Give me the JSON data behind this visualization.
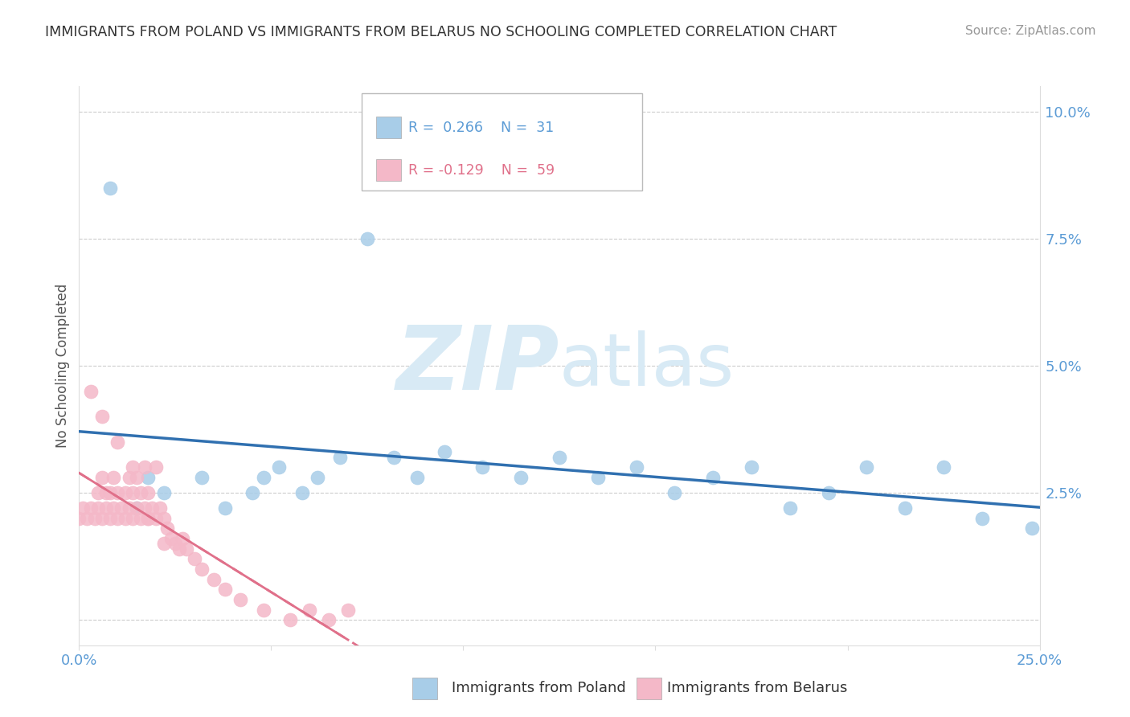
{
  "title": "IMMIGRANTS FROM POLAND VS IMMIGRANTS FROM BELARUS NO SCHOOLING COMPLETED CORRELATION CHART",
  "source": "Source: ZipAtlas.com",
  "ylabel": "No Schooling Completed",
  "ylabel_right_ticks": [
    "",
    "2.5%",
    "5.0%",
    "7.5%",
    "10.0%"
  ],
  "ylabel_right_vals": [
    0.0,
    0.025,
    0.05,
    0.075,
    0.1
  ],
  "xlim": [
    0.0,
    0.25
  ],
  "ylim": [
    -0.005,
    0.105
  ],
  "legend_poland": "Immigrants from Poland",
  "legend_belarus": "Immigrants from Belarus",
  "poland_color": "#a8cde8",
  "belarus_color": "#f4b8c8",
  "poland_line_color": "#3070b0",
  "belarus_line_color": "#e0708a",
  "background_color": "#ffffff",
  "poland_x": [
    0.022,
    0.032,
    0.038,
    0.045,
    0.048,
    0.052,
    0.058,
    0.062,
    0.068,
    0.075,
    0.082,
    0.088,
    0.095,
    0.105,
    0.115,
    0.125,
    0.135,
    0.145,
    0.155,
    0.165,
    0.175,
    0.185,
    0.195,
    0.205,
    0.215,
    0.225,
    0.235,
    0.008,
    0.015,
    0.018,
    0.248
  ],
  "poland_y": [
    0.025,
    0.028,
    0.022,
    0.025,
    0.028,
    0.03,
    0.025,
    0.028,
    0.032,
    0.075,
    0.032,
    0.028,
    0.033,
    0.03,
    0.028,
    0.032,
    0.028,
    0.03,
    0.025,
    0.028,
    0.03,
    0.022,
    0.025,
    0.03,
    0.022,
    0.03,
    0.02,
    0.085,
    0.022,
    0.028,
    0.018
  ],
  "belarus_x": [
    0.0,
    0.001,
    0.002,
    0.003,
    0.004,
    0.005,
    0.005,
    0.006,
    0.006,
    0.007,
    0.007,
    0.008,
    0.008,
    0.009,
    0.009,
    0.01,
    0.01,
    0.011,
    0.012,
    0.012,
    0.013,
    0.013,
    0.014,
    0.014,
    0.015,
    0.015,
    0.016,
    0.016,
    0.017,
    0.017,
    0.018,
    0.018,
    0.019,
    0.02,
    0.02,
    0.021,
    0.022,
    0.023,
    0.024,
    0.025,
    0.026,
    0.027,
    0.028,
    0.03,
    0.032,
    0.035,
    0.038,
    0.042,
    0.048,
    0.055,
    0.06,
    0.065,
    0.07,
    0.003,
    0.006,
    0.01,
    0.014,
    0.018,
    0.022
  ],
  "belarus_y": [
    0.02,
    0.022,
    0.02,
    0.022,
    0.02,
    0.022,
    0.025,
    0.02,
    0.028,
    0.022,
    0.025,
    0.02,
    0.025,
    0.022,
    0.028,
    0.02,
    0.025,
    0.022,
    0.02,
    0.025,
    0.022,
    0.028,
    0.02,
    0.025,
    0.022,
    0.028,
    0.02,
    0.025,
    0.022,
    0.03,
    0.02,
    0.025,
    0.022,
    0.02,
    0.03,
    0.022,
    0.02,
    0.018,
    0.016,
    0.015,
    0.014,
    0.016,
    0.014,
    0.012,
    0.01,
    0.008,
    0.006,
    0.004,
    0.002,
    0.0,
    0.002,
    0.0,
    0.002,
    0.045,
    0.04,
    0.035,
    0.03,
    0.02,
    0.015
  ]
}
